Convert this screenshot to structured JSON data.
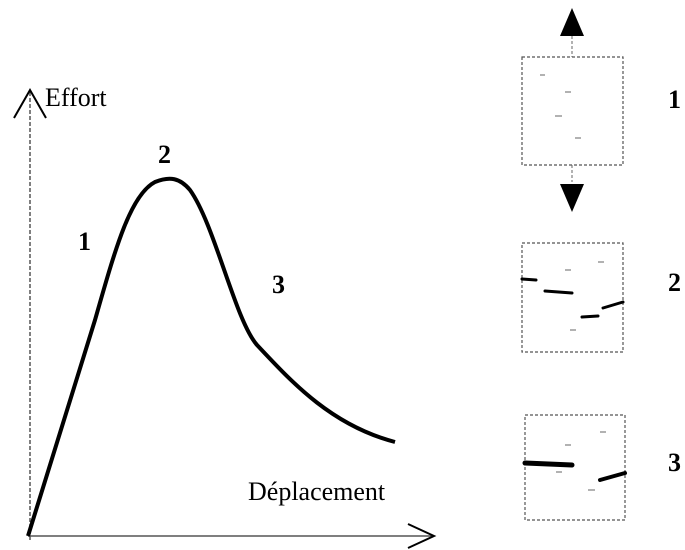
{
  "axes": {
    "y_label": "Effort",
    "x_label": "Déplacement"
  },
  "curve_labels": [
    "1",
    "2",
    "3"
  ],
  "panels": [
    {
      "label": "1"
    },
    {
      "label": "2"
    },
    {
      "label": "3"
    }
  ]
}
